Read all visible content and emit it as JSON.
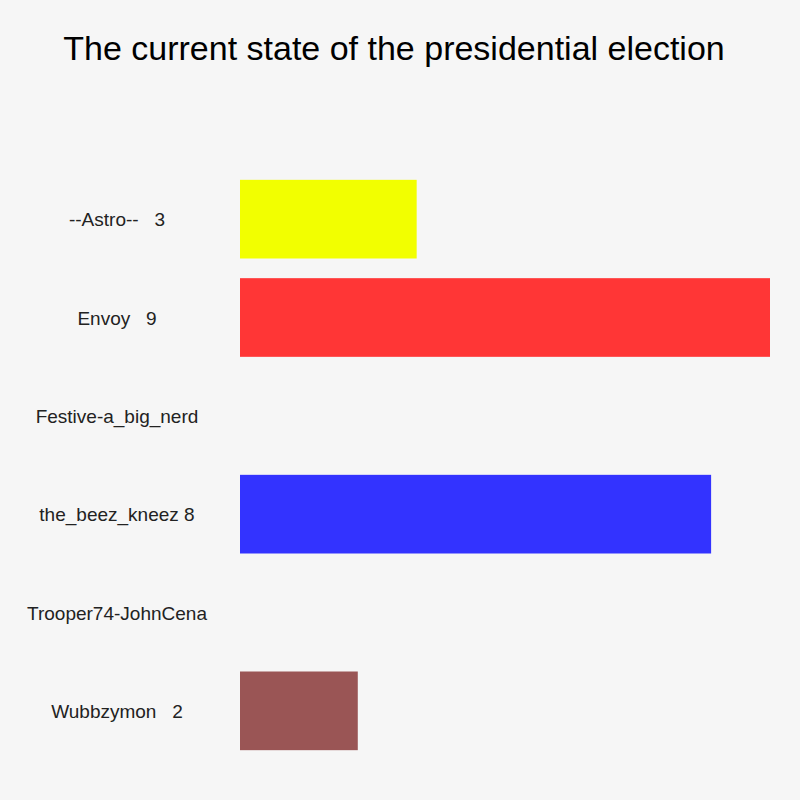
{
  "chart_data": {
    "type": "bar",
    "title": "The current state of the presidential election",
    "orientation": "horizontal",
    "categories": [
      "--Astro--   3",
      "Envoy   9",
      "Festive-a_big_nerd",
      "the_beez_kneez 8",
      "Trooper74-JohnCena",
      "Wubbzymon   2"
    ],
    "values": [
      3,
      9,
      0,
      8,
      0,
      2
    ],
    "colors": [
      "#f2ff00",
      "#ff3636",
      "#ff9933",
      "#3333ff",
      "#33cc66",
      "#9a5555"
    ],
    "xlim": [
      0,
      9
    ],
    "tick_labels": false,
    "grid": false
  }
}
